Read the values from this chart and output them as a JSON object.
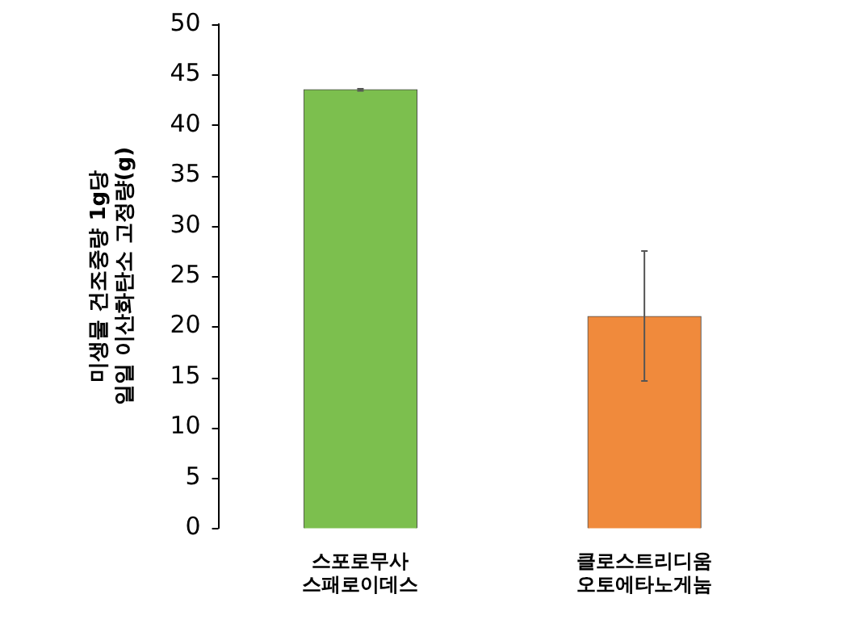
{
  "chart_data": {
    "type": "bar",
    "ylabel": "미생물 건조중량 1g당\n일일 이산화탄소 고정량(g)",
    "categories": [
      "스포로무사\n스패로이데스",
      "클로스트리디움\n오토에타노게눔"
    ],
    "values": [
      43.5,
      21
    ],
    "colors": [
      "#7cbf4e",
      "#f08a3c"
    ],
    "errors": [
      0.1,
      [
        14.6,
        27.5
      ]
    ],
    "ylim": [
      0,
      50
    ],
    "yticks": [
      0,
      5,
      10,
      15,
      20,
      25,
      30,
      35,
      40,
      45,
      50
    ],
    "grid": false,
    "legend": false
  }
}
